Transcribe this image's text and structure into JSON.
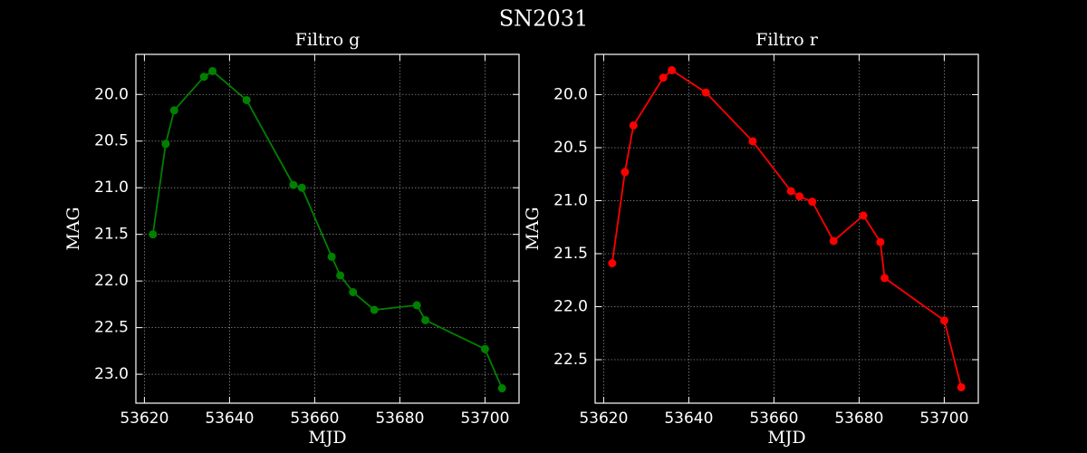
{
  "title": "SN2031",
  "chart_data": [
    {
      "type": "line",
      "title": "Filtro g",
      "x_label": "MJD",
      "y_label": "MAG",
      "series": [
        {
          "name": "g",
          "color": "#008000",
          "x": [
            53622,
            53625,
            53627,
            53634,
            53636,
            53644,
            53655,
            53657,
            53664,
            53666,
            53669,
            53674,
            53684,
            53686,
            53700,
            53704
          ],
          "values": [
            21.5,
            20.53,
            20.17,
            19.81,
            19.75,
            20.06,
            20.97,
            21.0,
            21.74,
            21.94,
            22.12,
            22.31,
            22.26,
            22.42,
            22.73,
            23.15
          ]
        }
      ],
      "xlim": [
        53618,
        53708
      ],
      "xticks": [
        53620,
        53640,
        53660,
        53680,
        53700
      ],
      "ylim": [
        19.57,
        23.31
      ],
      "y_inverted": true,
      "yticks": [
        {
          "value": 20,
          "label": "20.0"
        },
        20.5,
        {
          "value": 21,
          "label": "21.0"
        },
        21.5,
        {
          "value": 22,
          "label": "22.0"
        },
        22.5,
        {
          "value": 23,
          "label": "23.0"
        }
      ],
      "grid": true
    },
    {
      "type": "line",
      "title": "Filtro r",
      "x_label": "MJD",
      "y_label": "MAG",
      "series": [
        {
          "name": "r",
          "color": "#ff0000",
          "x": [
            53622,
            53625,
            53627,
            53634,
            53636,
            53644,
            53655,
            53664,
            53666,
            53669,
            53674,
            53681,
            53685,
            53686,
            53700,
            53704
          ],
          "values": [
            21.59,
            20.73,
            20.29,
            19.84,
            19.77,
            19.98,
            20.44,
            20.91,
            20.96,
            21.01,
            21.38,
            21.14,
            21.39,
            21.73,
            22.13,
            22.76
          ]
        }
      ],
      "xlim": [
        53618,
        53708
      ],
      "xticks": [
        53620,
        53640,
        53660,
        53680,
        53700
      ],
      "ylim": [
        19.62,
        22.91
      ],
      "y_inverted": true,
      "yticks": [
        {
          "value": 20,
          "label": "20.0"
        },
        20.5,
        {
          "value": 21,
          "label": "21.0"
        },
        21.5,
        {
          "value": 22,
          "label": "22.0"
        },
        22.5
      ],
      "grid": true
    }
  ]
}
